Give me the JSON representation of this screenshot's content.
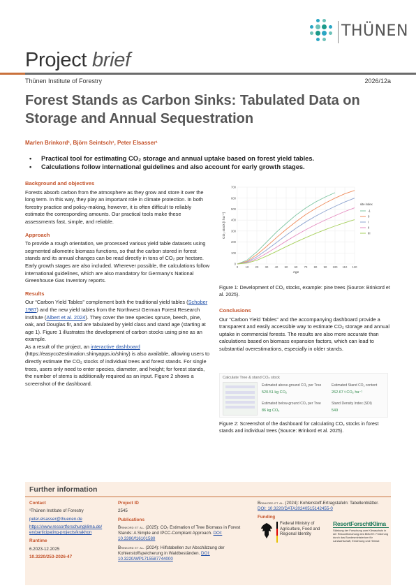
{
  "header": {
    "logo_name": "THÜNEN",
    "brief_word1": "Project",
    "brief_word2": "brief",
    "institute": "Thünen Institute of Forestry",
    "issue": "2026/12a",
    "accent_color": "#c9713c",
    "logo_dot_colors": [
      "#1b9a8a",
      "#2aa6c4",
      "#6cc1b9"
    ]
  },
  "title": "Forest Stands as Carbon Sinks: Tabulated Data on Storage and Annual Sequestration",
  "authors": "Marlen Brinkord¹, Björn Seintsch¹, Peter Elsasser¹",
  "highlights": [
    "Practical tool for estimating CO₂ storage and annual uptake based on forest yield tables.",
    "Calculations follow international guidelines and also account for early growth stages."
  ],
  "sections": {
    "background": {
      "heading": "Background and objectives",
      "text": "Forests absorb carbon from the atmosphere as they grow and store it over the long term. In this way, they play an important role in climate protection. In both forestry practice and policy-making, however, it is often difficult to reliably estimate the corresponding amounts. Our practical tools make these assessments fast, simple, and reliable."
    },
    "approach": {
      "heading": "Approach",
      "text": "To provide a rough orientation, we processed various yield table datasets using segmented allometric biomass functions, so that the carbon stored in forest stands and its annual changes can be read directly in tons of CO₂ per hectare. Early growth stages are also included. Wherever possible, the calculations follow international guidelines, which are also mandatory for Germany's National Greenhouse Gas Inventory reports."
    },
    "results": {
      "heading": "Results",
      "text_a": "Our “Carbon Yield Tables” complement both the traditional yield tables (",
      "link_a": "Schober 1987",
      "text_b": ") and the new yield tables from the Northwest German Forest Research Institute (",
      "link_b": "Albert et al. 2024",
      "text_c": "). They cover the tree species spruce, beech, pine, oak, and Douglas fir, and are tabulated by yield class and stand age (starting at age 1). Figure 1 illustrates the development of carbon stocks using pine as an example.",
      "text_d": "As a result of the project, an ",
      "link_d": "interactive dashboard",
      "text_e": " (https://easyco2estimation.shinyapps.io/shiny) is also available, allowing users to directly estimate the CO₂ stocks of individual trees and forest stands. For single trees, users only need to enter species, diameter, and height; for forest stands, the number of stems is additionally required as an input. Figure 2 shows a screenshot of the dashboard."
    },
    "conclusions": {
      "heading": "Conclusions",
      "text": "Our “Carbon Yield Tables” and the accompanying dashboard provide a transparent and easily accessible way to estimate CO₂ storage and annual uptake in commercial forests. The results are also more accurate than calculations based on biomass expansion factors, which can lead to substantial overestimations, especially in older stands."
    }
  },
  "figure1_caption": "Figure 1: Development of CO₂ stocks, example: pine trees (Source: Brinkord et al. 2025).",
  "figure2_caption": "Figure 2: Screenshot of the dashboard for calculating CO₂ stocks in forest stands and individual trees (Source: Brinkord et al. 2025).",
  "dashboard": {
    "title": "Calculate Tree & stand CO₂ stock",
    "label1": "Estimated above-ground CO₂ per Tree",
    "value1": "520.51 kg CO₂",
    "label2": "Estimated Stand CO₂ content",
    "value2": "262.67 t CO₂ ha⁻¹",
    "label3": "Estimated below-ground CO₂ per Tree",
    "value3": "86 kg CO₂",
    "label4": "Stand Density Index (SDI)",
    "value4": "549"
  },
  "chart_data": {
    "type": "line",
    "xlabel": "Age",
    "ylabel": "CO₂ stock [t ha⁻¹]",
    "xlim": [
      0,
      120
    ],
    "ylim": [
      0,
      700
    ],
    "xticks": [
      0,
      10,
      20,
      30,
      40,
      50,
      60,
      70,
      80,
      90,
      100,
      110,
      120
    ],
    "yticks": [
      0,
      100,
      200,
      300,
      400,
      500,
      600,
      700
    ],
    "legend_title": "site index",
    "legend_position": "right",
    "series": [
      {
        "name": "-1",
        "color": "#7cc4a0",
        "x": [
          0,
          10,
          20,
          30,
          40,
          50,
          60,
          70,
          80,
          90,
          100
        ],
        "y": [
          0,
          35,
          110,
          200,
          290,
          370,
          445,
          510,
          565,
          610,
          650
        ]
      },
      {
        "name": "0",
        "color": "#ef8c5c",
        "x": [
          0,
          10,
          20,
          30,
          40,
          50,
          60,
          70,
          80,
          90,
          100,
          110,
          120
        ],
        "y": [
          0,
          25,
          85,
          160,
          240,
          315,
          385,
          450,
          505,
          555,
          600,
          640,
          670
        ]
      },
      {
        "name": "I",
        "color": "#8da3cf",
        "x": [
          0,
          10,
          20,
          30,
          40,
          50,
          60,
          70,
          80,
          90,
          100,
          110,
          120
        ],
        "y": [
          0,
          18,
          65,
          128,
          195,
          262,
          325,
          383,
          435,
          482,
          525,
          565,
          600
        ]
      },
      {
        "name": "II",
        "color": "#e58cc0",
        "x": [
          0,
          10,
          20,
          30,
          40,
          50,
          60,
          70,
          80,
          90,
          100,
          110,
          120
        ],
        "y": [
          0,
          12,
          48,
          98,
          152,
          208,
          262,
          312,
          358,
          400,
          440,
          478,
          512
        ]
      },
      {
        "name": "III",
        "color": "#a6cf5a",
        "x": [
          0,
          10,
          20,
          30,
          40,
          50,
          60,
          70,
          80,
          90,
          100,
          110,
          120
        ],
        "y": [
          0,
          8,
          34,
          72,
          114,
          158,
          200,
          240,
          278,
          313,
          346,
          376,
          404
        ]
      }
    ]
  },
  "footer": {
    "title": "Further information",
    "contact_h": "Contact",
    "contact_org": "¹Thünen Institute of Forestry",
    "contact_email": "peter.elsasser@thuenen.de",
    "contact_url1": "https://www.ressortforschungklima.de/",
    "contact_url2": "en/participating-projects/krakhon",
    "runtime_h": "Runtime",
    "runtime": "6.2023-12.2025",
    "doi_brief": "10.3220/253-2026-47",
    "project_id_h": "Project ID",
    "project_id": "2545",
    "publications_h": "Publications",
    "pub1_author": "Brinkord et al.",
    "pub1_text": " (2025): CO₂ Estimation of Tree Biomass in Forest Stands: A Simple and IPCC-Compliant Approach.",
    "pub1_doi": "DOI: 10.3390/f16101580",
    "pub2_author": "Brinkord et al.",
    "pub2_text": " (2024): Hilfstabellen zur Abschätzung der Kohlenstoffspeicherung in Waldbeständen.",
    "pub2_doi": "DOI: 10.3220/WP1715587744000",
    "pub3_author": "Brinkord et al.",
    "pub3_text": " (2024): Kohlenstoff-Ertragstafeln: Tabellenblätter.",
    "pub3_doi": "DOI: 10.3220/DATA20240515142455-0",
    "funding_h": "Funding",
    "funder_text": "Federal Ministry of Agriculture, Food and Regional Identity",
    "rfk_name": "ResortForschtKlima",
    "rfk_sub": "Stärkung der Forschung zum Klimaschutz in der Ressortforschung des BMLEH: Förderung durch das Bundesministerium für Landwirtschaft, Ernährung und Heimat"
  }
}
